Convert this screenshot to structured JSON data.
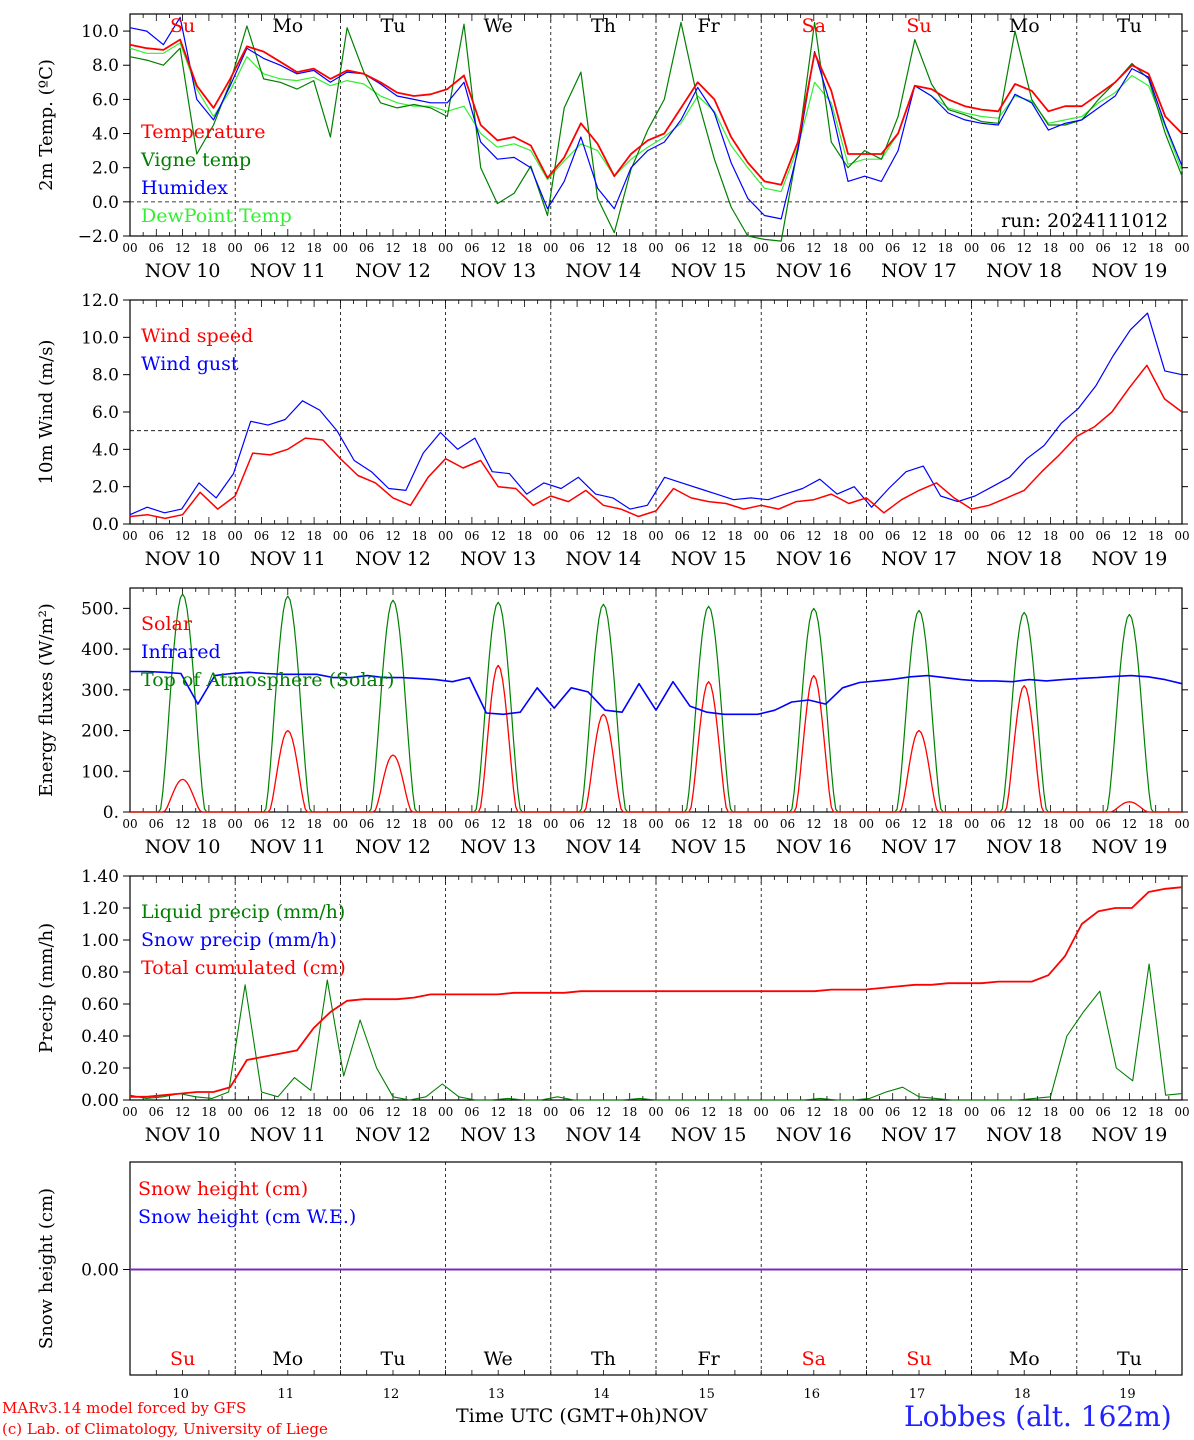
{
  "colors": {
    "red": "#ff0000",
    "darkgreen": "#008000",
    "blue": "#0000ff",
    "lightgreen": "#33ee33",
    "snow_zero": "#7b2bbf"
  },
  "days": [
    "NOV 10",
    "NOV 11",
    "NOV 12",
    "NOV 13",
    "NOV 14",
    "NOV 15",
    "NOV 16",
    "NOV 17",
    "NOV 18",
    "NOV 19"
  ],
  "weekdays": [
    "Su",
    "Mo",
    "Tu",
    "We",
    "Th",
    "Fr",
    "Sa",
    "Su",
    "Mo",
    "Tu"
  ],
  "weekday_colors": [
    "red",
    "black",
    "black",
    "black",
    "black",
    "black",
    "red",
    "red",
    "black",
    "black"
  ],
  "day_numbers": [
    "10",
    "11",
    "12",
    "13",
    "14",
    "15",
    "16",
    "17",
    "18",
    "19"
  ],
  "hour_ticks": [
    "00",
    "06",
    "12",
    "18"
  ],
  "footer": {
    "credit1": "MARv3.14 model forced by GFS",
    "credit2": "(c) Lab. of Climatology, University of Liege",
    "xlabel": "Time UTC (GMT+0h)",
    "month": "NOV",
    "station": "Lobbes (alt. 162m)"
  },
  "chart_data": [
    {
      "type": "line",
      "ylabel": "2m Temp. (ºC)",
      "ylim": [
        -2,
        11
      ],
      "yticks": [
        "10.0",
        "8.0",
        "6.0",
        "4.0",
        "2.0",
        "0.0",
        "−2.0"
      ],
      "ytick_values": [
        10,
        8,
        6,
        4,
        2,
        0,
        -2
      ],
      "reference_line": 0,
      "run_label": "run: 2024111012",
      "x_hours_start": 0,
      "x_step_hours": 6,
      "series": [
        {
          "name": "Temperature",
          "color": "red",
          "values": [
            9.2,
            9.0,
            8.9,
            9.5,
            6.8,
            5.5,
            7.2,
            9.1,
            8.8,
            8.2,
            7.6,
            7.8,
            7.2,
            7.7,
            7.5,
            7.0,
            6.4,
            6.2,
            6.3,
            6.6,
            7.4,
            4.5,
            3.6,
            3.8,
            3.3,
            1.4,
            2.6,
            4.6,
            3.4,
            1.5,
            2.8,
            3.6,
            4.0,
            5.5,
            7.0,
            6.0,
            3.8,
            2.3,
            1.2,
            1.0,
            3.5,
            8.7,
            6.5,
            2.8,
            2.8,
            2.8,
            4.0,
            6.8,
            6.6,
            6.0,
            5.6,
            5.4,
            5.3,
            6.9,
            6.5,
            5.3,
            5.6,
            5.6,
            6.3,
            7.0,
            8.0,
            7.5,
            5.0,
            4.0
          ]
        },
        {
          "name": "Vigne temp",
          "color": "darkgreen",
          "values": [
            8.5,
            8.3,
            8.0,
            9.0,
            2.8,
            4.5,
            7.0,
            10.3,
            7.2,
            7.0,
            6.6,
            7.1,
            3.8,
            10.2,
            7.6,
            5.8,
            5.5,
            5.7,
            5.5,
            5.0,
            10.4,
            2.0,
            -0.1,
            0.5,
            2.1,
            -0.8,
            5.5,
            7.6,
            0.2,
            -1.8,
            1.9,
            4.2,
            6.0,
            10.5,
            6.0,
            2.5,
            -0.3,
            -2.0,
            -2.2,
            -2.3,
            3.2,
            10.5,
            3.5,
            2.0,
            3.0,
            2.5,
            5.0,
            9.5,
            6.9,
            5.4,
            5.1,
            4.7,
            4.6,
            10.0,
            6.0,
            4.5,
            4.5,
            4.8,
            6.0,
            7.0,
            8.1,
            7.2,
            4.0,
            1.5
          ]
        },
        {
          "name": "Humidex",
          "color": "blue",
          "values": [
            10.2,
            10.0,
            9.2,
            10.8,
            6.0,
            4.8,
            6.8,
            9.0,
            8.4,
            8.0,
            7.5,
            7.7,
            7.0,
            7.6,
            7.5,
            6.9,
            6.2,
            6.0,
            5.8,
            5.8,
            7.0,
            3.5,
            2.5,
            2.6,
            2.0,
            -0.4,
            1.2,
            3.8,
            0.8,
            -0.4,
            2.0,
            3.0,
            3.5,
            4.8,
            6.7,
            5.2,
            2.3,
            0.2,
            -0.8,
            -1.0,
            3.0,
            8.8,
            5.5,
            1.2,
            1.5,
            1.2,
            3.0,
            6.8,
            6.2,
            5.2,
            4.8,
            4.6,
            4.5,
            6.3,
            5.8,
            4.2,
            4.6,
            4.8,
            5.5,
            6.2,
            7.8,
            7.3,
            4.5,
            2.1
          ]
        },
        {
          "name": "DewPoint Temp",
          "color": "lightgreen",
          "values": [
            9.0,
            8.7,
            8.7,
            9.3,
            6.6,
            5.0,
            6.5,
            8.5,
            7.5,
            7.2,
            7.1,
            7.3,
            6.8,
            7.1,
            6.9,
            6.2,
            5.8,
            5.6,
            5.6,
            5.3,
            5.6,
            4.0,
            3.2,
            3.4,
            3.0,
            1.3,
            2.4,
            3.4,
            3.0,
            1.5,
            2.5,
            3.2,
            3.8,
            4.6,
            6.2,
            5.3,
            3.3,
            2.0,
            0.8,
            0.6,
            3.2,
            7.0,
            5.8,
            2.2,
            2.5,
            2.5,
            4.0,
            6.8,
            6.2,
            5.5,
            5.2,
            5.0,
            4.9,
            6.2,
            5.9,
            4.6,
            4.8,
            5.0,
            5.8,
            6.4,
            7.4,
            6.8,
            4.4,
            1.8
          ]
        }
      ]
    },
    {
      "type": "line",
      "ylabel": "10m Wind (m/s)",
      "ylim": [
        0,
        12
      ],
      "yticks": [
        "12.0",
        "10.0",
        "8.0",
        "6.0",
        "4.0",
        "2.0",
        "0.0"
      ],
      "ytick_values": [
        12,
        10,
        8,
        6,
        4,
        2,
        0
      ],
      "reference_line": 5,
      "x_hours_start": 0,
      "x_step_hours": 6,
      "series": [
        {
          "name": "Wind speed",
          "color": "red",
          "values": [
            0.4,
            0.5,
            0.3,
            0.5,
            1.7,
            0.8,
            1.5,
            3.8,
            3.7,
            4.0,
            4.6,
            4.5,
            3.5,
            2.6,
            2.2,
            1.4,
            1.0,
            2.5,
            3.5,
            3.0,
            3.4,
            2.0,
            1.9,
            1.0,
            1.5,
            1.2,
            1.8,
            1.0,
            0.8,
            0.4,
            0.7,
            1.9,
            1.4,
            1.2,
            1.1,
            0.8,
            1.0,
            0.8,
            1.2,
            1.3,
            1.6,
            1.1,
            1.4,
            0.6,
            1.3,
            1.8,
            2.2,
            1.4,
            0.8,
            1.0,
            1.4,
            1.8,
            2.8,
            3.7,
            4.7,
            5.2,
            6.0,
            7.3,
            8.5,
            6.7,
            6.0
          ]
        },
        {
          "name": "Wind gust",
          "color": "blue",
          "values": [
            0.5,
            0.9,
            0.6,
            0.8,
            2.2,
            1.4,
            2.7,
            5.5,
            5.3,
            5.6,
            6.6,
            6.1,
            5.0,
            3.4,
            2.8,
            1.9,
            1.8,
            3.8,
            4.9,
            4.0,
            4.6,
            2.8,
            2.7,
            1.6,
            2.2,
            1.9,
            2.5,
            1.6,
            1.4,
            0.8,
            1.0,
            2.5,
            2.2,
            1.9,
            1.6,
            1.3,
            1.4,
            1.3,
            1.6,
            1.9,
            2.4,
            1.6,
            2.0,
            0.9,
            1.9,
            2.8,
            3.1,
            1.5,
            1.2,
            1.5,
            2.0,
            2.5,
            3.5,
            4.2,
            5.4,
            6.2,
            7.4,
            9.0,
            10.4,
            11.3,
            8.2,
            8.0
          ]
        }
      ]
    },
    {
      "type": "line",
      "ylabel": "Energy fluxes (W/m²)",
      "ylim": [
        0,
        550
      ],
      "yticks": [
        "500.",
        "400.",
        "300.",
        "200.",
        "100.",
        "0."
      ],
      "ytick_values": [
        500,
        400,
        300,
        200,
        100,
        0
      ],
      "x_hours_start": 0,
      "x_step_hours": 6,
      "day_peaks": {
        "solar": [
          80,
          200,
          140,
          360,
          240,
          320,
          335,
          200,
          310,
          25
        ],
        "top_of_atmosphere": [
          535,
          530,
          520,
          515,
          510,
          505,
          500,
          495,
          490,
          485
        ]
      },
      "series": [
        {
          "name": "Solar",
          "color": "red"
        },
        {
          "name": "Infrared",
          "color": "blue",
          "values": [
            345,
            345,
            343,
            340,
            265,
            335,
            340,
            343,
            340,
            338,
            338,
            338,
            330,
            330,
            335,
            330,
            330,
            328,
            325,
            320,
            330,
            243,
            240,
            245,
            305,
            255,
            305,
            295,
            250,
            245,
            315,
            250,
            320,
            260,
            245,
            240,
            240,
            240,
            250,
            270,
            275,
            265,
            305,
            318,
            322,
            326,
            332,
            335,
            330,
            325,
            322,
            322,
            320,
            325,
            322,
            325,
            328,
            330,
            333,
            335,
            332,
            325,
            315
          ]
        },
        {
          "name": "Top of Atmosphere (Solar)",
          "color": "darkgreen"
        }
      ]
    },
    {
      "type": "line",
      "ylabel": "Precip (mm/h)",
      "ylim": [
        0,
        1.4
      ],
      "yticks": [
        "1.40",
        "1.20",
        "1.00",
        "0.80",
        "0.60",
        "0.40",
        "0.20",
        "0.00"
      ],
      "ytick_values": [
        1.4,
        1.2,
        1.0,
        0.8,
        0.6,
        0.4,
        0.2,
        0
      ],
      "x_hours_start": 0,
      "x_step_hours": 6,
      "series": [
        {
          "name": "Liquid precip (mm/h)",
          "color": "darkgreen",
          "values": [
            0.03,
            0.01,
            0.02,
            0.04,
            0.02,
            0.01,
            0.05,
            0.72,
            0.05,
            0.02,
            0.14,
            0.06,
            0.75,
            0.15,
            0.5,
            0.2,
            0.02,
            0,
            0.02,
            0.1,
            0.02,
            0,
            0,
            0.01,
            0,
            0,
            0.02,
            0,
            0,
            0,
            0,
            0.01,
            0,
            0,
            0,
            0,
            0,
            0,
            0,
            0,
            0,
            0,
            0.01,
            0,
            0,
            0.01,
            0.05,
            0.08,
            0.02,
            0.01,
            0,
            0,
            0,
            0,
            0,
            0.01,
            0.02,
            0.4,
            0.55,
            0.68,
            0.2,
            0.12,
            0.85,
            0.03,
            0.04
          ]
        },
        {
          "name": "Snow precip (mm/h)",
          "color": "blue",
          "values": [
            0,
            0
          ]
        },
        {
          "name": "Total cumulated (cm)",
          "color": "red",
          "values": [
            0.02,
            0.02,
            0.03,
            0.04,
            0.05,
            0.05,
            0.08,
            0.25,
            0.27,
            0.29,
            0.31,
            0.45,
            0.55,
            0.62,
            0.63,
            0.63,
            0.63,
            0.64,
            0.66,
            0.66,
            0.66,
            0.66,
            0.66,
            0.67,
            0.67,
            0.67,
            0.67,
            0.68,
            0.68,
            0.68,
            0.68,
            0.68,
            0.68,
            0.68,
            0.68,
            0.68,
            0.68,
            0.68,
            0.68,
            0.68,
            0.68,
            0.68,
            0.69,
            0.69,
            0.69,
            0.7,
            0.71,
            0.72,
            0.72,
            0.73,
            0.73,
            0.73,
            0.74,
            0.74,
            0.74,
            0.78,
            0.9,
            1.1,
            1.18,
            1.2,
            1.2,
            1.3,
            1.32,
            1.33
          ]
        }
      ]
    },
    {
      "type": "line",
      "ylabel": "Snow height (cm)",
      "ytick_label": "0.00",
      "x_hours_start": 0,
      "x_step_hours": 6,
      "series": [
        {
          "name": "Snow height (cm)",
          "color": "red",
          "values": [
            0,
            0
          ]
        },
        {
          "name": "Snow height (cm W.E.)",
          "color": "blue",
          "values": [
            0,
            0
          ]
        }
      ]
    }
  ]
}
